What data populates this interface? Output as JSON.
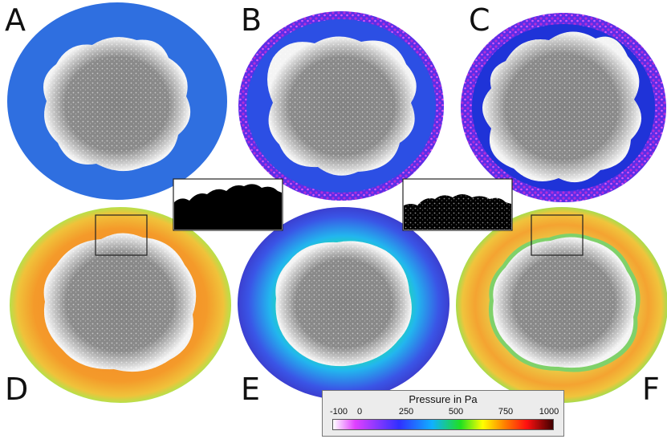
{
  "panels": [
    {
      "label": "A",
      "style": "blue-ring"
    },
    {
      "label": "B",
      "style": "blue-purple-rim"
    },
    {
      "label": "C",
      "style": "dark-blue-purple-rim"
    },
    {
      "label": "D",
      "style": "orange-pressure"
    },
    {
      "label": "E",
      "style": "blue-green-pressure"
    },
    {
      "label": "F",
      "style": "yellow-orange-pressure"
    }
  ],
  "legend": {
    "title": "Pressure in Pa",
    "ticks": [
      "-100",
      "0",
      "250",
      "500",
      "750",
      "1000"
    ],
    "colors": [
      "#ffffff",
      "#e040ff",
      "#3030ff",
      "#10b0ff",
      "#20e020",
      "#ffff00",
      "#ff8000",
      "#ff1010",
      "#400000"
    ]
  },
  "colors": {
    "background": "#ffffff",
    "particles_gray": "#858585",
    "particles_white": "#f2f2f2",
    "ring_blue": "#2f6fe0",
    "rim_purple": "#9b2bd6",
    "ring_orange": "#f39a2a",
    "ring_yellow": "#e8d84a"
  }
}
